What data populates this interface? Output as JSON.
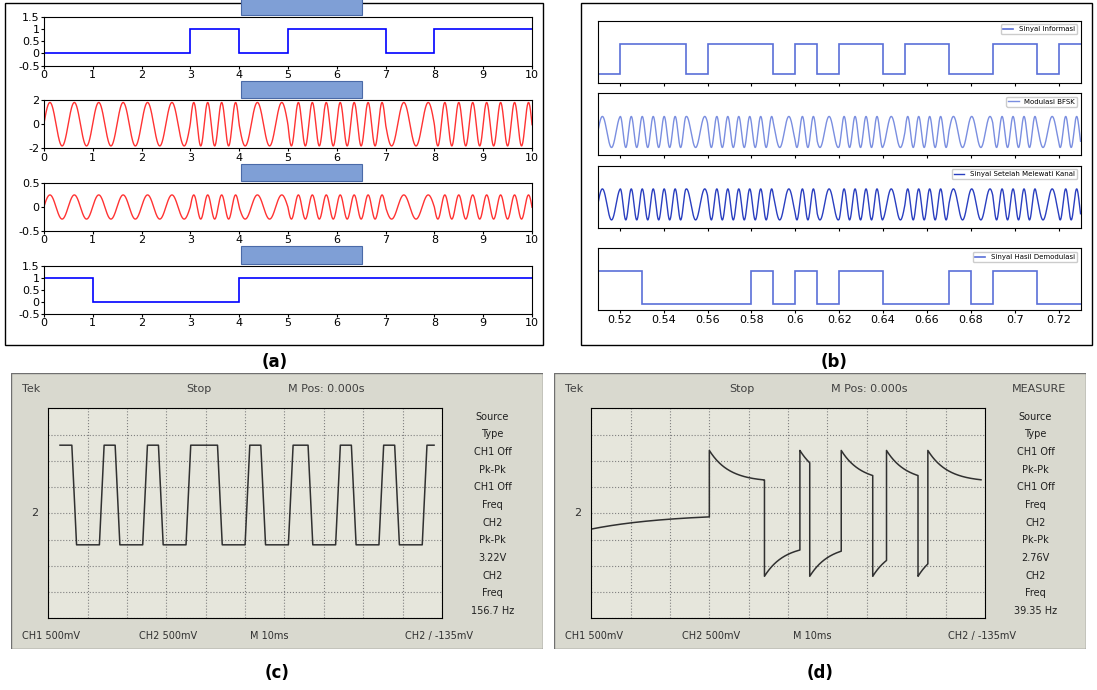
{
  "chart_data": [
    {
      "panel": "(a)",
      "type": "signal_stack",
      "xlim": [
        0,
        10
      ],
      "xticks": [
        0,
        1,
        2,
        3,
        4,
        5,
        6,
        7,
        8,
        9,
        10
      ],
      "subplots": [
        {
          "type": "step",
          "edges": [
            0,
            1,
            2,
            3,
            4,
            5,
            6,
            7,
            8,
            9,
            10
          ],
          "values": [
            0,
            0,
            0,
            1,
            0,
            1,
            1,
            0,
            1,
            1
          ],
          "color": "#0000ff",
          "ylim": [
            -0.5,
            1.5
          ],
          "yticks": [
            -0.5,
            0,
            0.5,
            1,
            1.5
          ],
          "tick_labels": true
        },
        {
          "type": "fsk",
          "edges": [
            0,
            1,
            2,
            3,
            4,
            5,
            6,
            7,
            8,
            9,
            10
          ],
          "bits": [
            0,
            0,
            0,
            1,
            0,
            1,
            1,
            0,
            1,
            1
          ],
          "cycles_per_unit": [
            2,
            3.5
          ],
          "amplitude": 1.8,
          "color": "#ff3333",
          "ylim": [
            -2,
            2
          ],
          "yticks": [
            -2,
            0,
            2
          ],
          "tick_labels": true
        },
        {
          "type": "fsk",
          "edges": [
            0,
            1,
            2,
            3,
            4,
            5,
            6,
            7,
            8,
            9,
            10
          ],
          "bits": [
            0,
            0,
            0,
            1,
            0,
            1,
            1,
            0,
            1,
            1
          ],
          "cycles_per_unit": [
            2,
            3.5
          ],
          "amplitude": 0.25,
          "color": "#ff3333",
          "ylim": [
            -0.5,
            0.5
          ],
          "yticks": [
            -0.5,
            0,
            0.5
          ],
          "tick_labels": true
        },
        {
          "type": "step",
          "edges": [
            0,
            1,
            2,
            3,
            4,
            5,
            6,
            7,
            8,
            9,
            10
          ],
          "values": [
            1,
            0,
            0,
            0,
            1,
            1,
            1,
            1,
            1,
            1
          ],
          "color": "#0000ff",
          "ylim": [
            -0.5,
            1.5
          ],
          "yticks": [
            -0.5,
            0,
            0.5,
            1,
            1.5
          ],
          "tick_labels": true
        }
      ]
    },
    {
      "panel": "(b)",
      "type": "signal_stack",
      "xlim": [
        0.51,
        0.73
      ],
      "xticks": [
        0.52,
        0.54,
        0.56,
        0.58,
        0.6,
        0.62,
        0.64,
        0.66,
        0.68,
        0.7,
        0.72
      ],
      "subplots": [
        {
          "type": "step",
          "name": "Sinyal Informasi",
          "legend": "upper right",
          "edges": [
            0.51,
            0.52,
            0.53,
            0.54,
            0.55,
            0.56,
            0.57,
            0.58,
            0.59,
            0.6,
            0.61,
            0.62,
            0.63,
            0.64,
            0.65,
            0.66,
            0.67,
            0.68,
            0.69,
            0.7,
            0.71,
            0.72,
            0.73
          ],
          "values": [
            0,
            1,
            1,
            1,
            0,
            1,
            1,
            1,
            0,
            1,
            0,
            1,
            1,
            0,
            1,
            1,
            0,
            0,
            1,
            1,
            0,
            1
          ],
          "color": "#5a6fd8",
          "ylim": [
            -0.3,
            1.8
          ],
          "tick_labels": false
        },
        {
          "type": "fsk",
          "name": "Modulasi BFSK",
          "legend": "upper right",
          "edges": [
            0.51,
            0.52,
            0.53,
            0.54,
            0.55,
            0.56,
            0.57,
            0.58,
            0.59,
            0.6,
            0.61,
            0.62,
            0.63,
            0.64,
            0.65,
            0.66,
            0.67,
            0.68,
            0.69,
            0.7,
            0.71,
            0.72,
            0.73
          ],
          "bits": [
            0,
            1,
            1,
            1,
            0,
            1,
            1,
            1,
            0,
            1,
            0,
            1,
            1,
            0,
            1,
            1,
            0,
            0,
            1,
            1,
            0,
            1
          ],
          "cycles_per_unit": [
            120,
            200
          ],
          "amplitude": 1,
          "color": "#7a8ee0",
          "ylim": [
            -1.5,
            2.5
          ],
          "tick_labels": false
        },
        {
          "type": "fsk",
          "name": "Sinyal Setelah Melewati Kanal",
          "legend": "upper right",
          "edges": [
            0.51,
            0.52,
            0.53,
            0.54,
            0.55,
            0.56,
            0.57,
            0.58,
            0.59,
            0.6,
            0.61,
            0.62,
            0.63,
            0.64,
            0.65,
            0.66,
            0.67,
            0.68,
            0.69,
            0.7,
            0.71,
            0.72,
            0.73
          ],
          "bits": [
            0,
            1,
            1,
            1,
            0,
            1,
            1,
            1,
            0,
            1,
            0,
            1,
            1,
            0,
            1,
            1,
            0,
            0,
            1,
            1,
            0,
            1
          ],
          "cycles_per_unit": [
            120,
            200
          ],
          "amplitude": 1,
          "color": "#2a3fc0",
          "ylim": [
            -1.5,
            2.5
          ],
          "tick_labels": false
        },
        {
          "type": "step",
          "name": "Sinyal Hasil Demodulasi",
          "legend": "upper right",
          "edges": [
            0.51,
            0.52,
            0.53,
            0.54,
            0.55,
            0.56,
            0.57,
            0.58,
            0.59,
            0.6,
            0.61,
            0.62,
            0.63,
            0.64,
            0.65,
            0.66,
            0.67,
            0.68,
            0.69,
            0.7,
            0.71,
            0.72,
            0.73
          ],
          "values": [
            1,
            1,
            0,
            0,
            0,
            0,
            0,
            1,
            0,
            1,
            0,
            1,
            1,
            0,
            0,
            0,
            1,
            0,
            1,
            1,
            0,
            0
          ],
          "color": "#5a6fd8",
          "ylim": [
            -0.2,
            1.7
          ],
          "tick_labels": "x"
        }
      ]
    },
    {
      "panel": "(c)",
      "type": "oscilloscope",
      "xlim": [
        0,
        10
      ],
      "ylim": [
        -4,
        4
      ],
      "xticks": [
        0,
        1,
        2,
        3,
        4,
        5,
        6,
        7,
        8,
        9,
        10
      ],
      "yticks": [
        -4,
        -3,
        -2,
        -1,
        0,
        1,
        2,
        3,
        4
      ],
      "tick_labels": false,
      "grid": true,
      "marker_label": "2",
      "header": [
        "Tek",
        "Stop",
        "M Pos: 0.000s"
      ],
      "menu": [
        "Source",
        "Type",
        "CH1 Off",
        "Pk-Pk",
        "CH1 Off",
        "Freq",
        "CH2",
        "Pk-Pk",
        "3.22V",
        "CH2",
        "Freq",
        "156.7 Hz"
      ],
      "footer": [
        "CH1 500mV",
        "CH2 500mV",
        "M 10ms",
        "CH2 / -135mV"
      ],
      "trace": {
        "type": "square",
        "x_start": 0.3,
        "x_end": 9.8,
        "high": 2.6,
        "low": -1.2,
        "edges": [
          0.6,
          1.3,
          1.7,
          2.4,
          2.8,
          3.5,
          4.3,
          5.0,
          5.4,
          6.1,
          6.6,
          7.3,
          7.7,
          8.4,
          8.8,
          9.5
        ],
        "color": "#303030"
      }
    },
    {
      "panel": "(d)",
      "type": "oscilloscope",
      "xlim": [
        0,
        10
      ],
      "ylim": [
        -4,
        4
      ],
      "xticks": [
        0,
        1,
        2,
        3,
        4,
        5,
        6,
        7,
        8,
        9,
        10
      ],
      "yticks": [
        -4,
        -3,
        -2,
        -1,
        0,
        1,
        2,
        3,
        4
      ],
      "tick_labels": false,
      "grid": true,
      "marker_label": "2",
      "header": [
        "Tek",
        "Stop",
        "M Pos: 0.000s",
        "MEASURE"
      ],
      "menu": [
        "Source",
        "Type",
        "CH1 Off",
        "Pk-Pk",
        "CH1 Off",
        "Freq",
        "CH2",
        "Pk-Pk",
        "2.76V",
        "CH2",
        "Freq",
        "39.35 Hz"
      ],
      "footer": [
        "CH1 500mV",
        "CH2 500mV",
        "M 10ms",
        "CH2 / -135mV"
      ],
      "trace": {
        "type": "decay",
        "x_start": 0.0,
        "x_end": 9.9,
        "peak": 2.4,
        "plateau": 1.2,
        "edges": [
          3.0,
          4.4,
          5.3,
          5.55,
          6.35,
          7.15,
          7.5,
          8.3,
          8.55
        ],
        "color": "#303030"
      }
    }
  ]
}
